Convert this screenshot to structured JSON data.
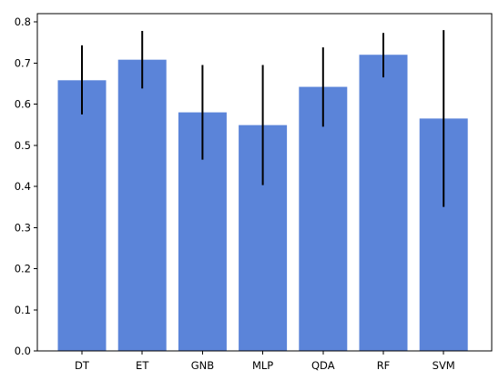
{
  "chart_data": {
    "type": "bar",
    "title": "",
    "xlabel": "",
    "ylabel": "",
    "categories": [
      "DT",
      "ET",
      "GNB",
      "MLP",
      "QDA",
      "RF",
      "SVM"
    ],
    "values": [
      0.658,
      0.708,
      0.58,
      0.549,
      0.642,
      0.72,
      0.565
    ],
    "error_low": [
      0.575,
      0.638,
      0.465,
      0.403,
      0.545,
      0.665,
      0.35
    ],
    "error_high": [
      0.743,
      0.778,
      0.695,
      0.695,
      0.738,
      0.773,
      0.78
    ],
    "ylim": [
      0.0,
      0.82
    ],
    "yticks": [
      0.0,
      0.1,
      0.2,
      0.3,
      0.4,
      0.5,
      0.6,
      0.7,
      0.8
    ],
    "ytick_labels": [
      "0.0",
      "0.1",
      "0.2",
      "0.3",
      "0.4",
      "0.5",
      "0.6",
      "0.7",
      "0.8"
    ],
    "grid": false,
    "legend": "none",
    "colors": {
      "bar": "#5b84d9",
      "error_bar": "#000000",
      "axis": "#000000"
    }
  }
}
